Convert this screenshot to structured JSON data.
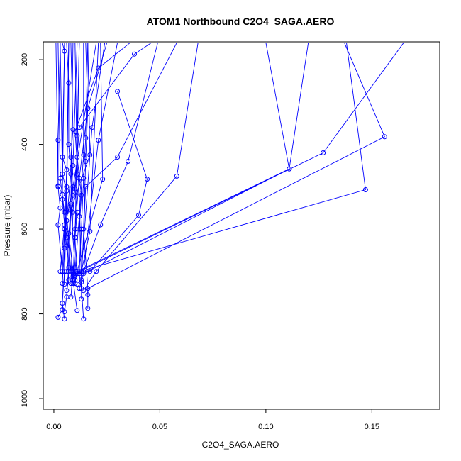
{
  "chart_data": {
    "type": "line",
    "title": "ATOM1 Northbound C2O4_SAGA.AERO",
    "xlabel": "C2O4_SAGA.AERO",
    "ylabel": "Pressure (mbar)",
    "xlim": [
      -0.005,
      0.182
    ],
    "ylim": [
      1025,
      158
    ],
    "y_reversed": true,
    "grid": false,
    "legend": "none",
    "x_ticks": [
      0.0,
      0.05,
      0.1,
      0.15
    ],
    "x_tick_labels": [
      "0.00",
      "0.05",
      "0.10",
      "0.15"
    ],
    "y_ticks": [
      200,
      400,
      600,
      800,
      1000
    ],
    "y_tick_labels": [
      "200",
      "400",
      "600",
      "800",
      "1000"
    ],
    "color": "#0000ff",
    "series": [
      {
        "x": [
          0.003,
          0.002,
          0.002,
          0.003,
          0.002,
          0.004,
          0.004,
          0.002
        ],
        "y": [
          160,
          390,
          500,
          550,
          590,
          700,
          790,
          808
        ]
      },
      {
        "x": [
          0.004,
          0.005,
          0.004,
          0.006,
          0.005,
          0.005,
          0.004,
          0.005
        ],
        "y": [
          160,
          180,
          430,
          460,
          600,
          700,
          775,
          812
        ]
      },
      {
        "x": [
          0.006,
          0.007,
          0.007,
          0.008,
          0.006,
          0.007,
          0.006,
          0.005
        ],
        "y": [
          160,
          255,
          400,
          470,
          580,
          690,
          760,
          795
        ]
      },
      {
        "x": [
          0.008,
          0.009,
          0.008,
          0.009,
          0.007,
          0.009,
          0.008
        ],
        "y": [
          160,
          365,
          430,
          520,
          610,
          700,
          760
        ]
      },
      {
        "x": [
          0.01,
          0.011,
          0.01,
          0.011,
          0.01,
          0.009,
          0.011
        ],
        "y": [
          160,
          470,
          505,
          560,
          620,
          720,
          792
        ]
      },
      {
        "x": [
          0.012,
          0.011,
          0.013,
          0.012,
          0.012,
          0.013,
          0.014
        ],
        "y": [
          160,
          430,
          520,
          600,
          705,
          740,
          812
        ]
      },
      {
        "x": [
          0.015,
          0.016,
          0.015,
          0.014,
          0.016,
          0.016
        ],
        "y": [
          160,
          315,
          440,
          600,
          740,
          787
        ]
      },
      {
        "x": [
          0.001,
          0.002,
          0.004,
          0.005,
          0.003
        ],
        "y": [
          160,
          498,
          518,
          590,
          700
        ]
      },
      {
        "x": [
          0.003,
          0.004,
          0.006,
          0.005,
          0.004
        ],
        "y": [
          160,
          470,
          510,
          645,
          728
        ]
      },
      {
        "x": [
          0.007,
          0.006,
          0.008,
          0.009
        ],
        "y": [
          160,
          560,
          700,
          728
        ]
      },
      {
        "x": [
          0.005,
          0.004,
          0.006,
          0.007,
          0.006
        ],
        "y": [
          160,
          530,
          640,
          720,
          745
        ]
      },
      {
        "x": [
          0.009,
          0.008,
          0.01,
          0.01
        ],
        "y": [
          160,
          545,
          690,
          705
        ]
      },
      {
        "x": [
          0.002,
          0.003,
          0.005,
          0.006
        ],
        "y": [
          160,
          480,
          560,
          620
        ]
      },
      {
        "x": [
          0.036,
          0.021,
          0.01,
          0.012,
          0.013,
          0.013
        ],
        "y": [
          160,
          220,
          370,
          515,
          725,
          765
        ]
      },
      {
        "x": [
          0.025,
          0.016,
          0.012,
          0.01,
          0.009
        ],
        "y": [
          160,
          315,
          480,
          600,
          720
        ]
      },
      {
        "x": [
          0.014,
          0.014,
          0.012,
          0.01,
          0.009
        ],
        "y": [
          160,
          425,
          570,
          700,
          720
        ]
      },
      {
        "x": [
          0.016,
          0.015,
          0.014,
          0.013,
          0.012
        ],
        "y": [
          160,
          385,
          480,
          600,
          700
        ]
      },
      {
        "x": [
          0.046,
          0.038,
          0.012,
          0.009,
          0.008
        ],
        "y": [
          160,
          187,
          360,
          560,
          728
        ]
      },
      {
        "x": [
          0.058,
          0.03,
          0.015,
          0.013
        ],
        "y": [
          160,
          430,
          500,
          720
        ]
      },
      {
        "x": [
          0.049,
          0.035,
          0.022,
          0.014,
          0.011
        ],
        "y": [
          160,
          440,
          590,
          700,
          705
        ]
      },
      {
        "x": [
          0.03,
          0.044,
          0.04,
          0.017,
          0.013
        ],
        "y": [
          275,
          482,
          567,
          700,
          700
        ]
      },
      {
        "x": [
          0.021,
          0.017,
          0.013
        ],
        "y": [
          160,
          605,
          700
        ]
      },
      {
        "x": [
          0.068,
          0.058,
          0.02,
          0.014
        ],
        "y": [
          160,
          475,
          700,
          745
        ]
      },
      {
        "x": [
          0.1,
          0.111,
          0.014,
          0.012
        ],
        "y": [
          160,
          458,
          705,
          740
        ]
      },
      {
        "x": [
          0.137,
          0.156,
          0.016,
          0.016
        ],
        "y": [
          160,
          382,
          740,
          755
        ]
      },
      {
        "x": [
          0.138,
          0.147,
          0.012,
          0.011
        ],
        "y": [
          160,
          507,
          700,
          705
        ]
      },
      {
        "x": [
          0.165,
          0.127,
          0.012,
          0.009
        ],
        "y": [
          160,
          420,
          700,
          712
        ]
      },
      {
        "x": [
          0.12,
          0.111,
          0.011,
          0.01
        ],
        "y": [
          160,
          458,
          700,
          728
        ]
      },
      {
        "x": [
          0.022,
          0.023,
          0.011,
          0.01
        ],
        "y": [
          160,
          482,
          700,
          720
        ]
      },
      {
        "x": [
          0.016,
          0.017,
          0.008,
          0.007
        ],
        "y": [
          160,
          425,
          555,
          700
        ]
      },
      {
        "x": [
          0.02,
          0.009,
          0.005,
          0.004
        ],
        "y": [
          160,
          500,
          600,
          700
        ]
      },
      {
        "x": [
          0.011,
          0.009,
          0.008,
          0.006
        ],
        "y": [
          160,
          450,
          540,
          700
        ]
      },
      {
        "x": [
          0.03,
          0.021,
          0.014
        ],
        "y": [
          160,
          390,
          700
        ]
      },
      {
        "x": [
          0.024,
          0.018,
          0.013
        ],
        "y": [
          160,
          360,
          700
        ]
      },
      {
        "x": [
          0.007,
          0.006,
          0.005
        ],
        "y": [
          160,
          500,
          730
        ]
      },
      {
        "x": [
          0.012,
          0.011,
          0.01,
          0.011
        ],
        "y": [
          160,
          380,
          620,
          730
        ]
      }
    ]
  }
}
